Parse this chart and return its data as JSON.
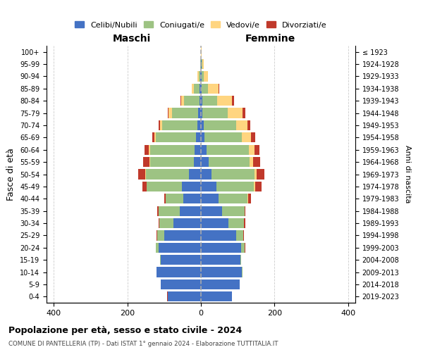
{
  "age_groups": [
    "0-4",
    "5-9",
    "10-14",
    "15-19",
    "20-24",
    "25-29",
    "30-34",
    "35-39",
    "40-44",
    "45-49",
    "50-54",
    "55-59",
    "60-64",
    "65-69",
    "70-74",
    "75-79",
    "80-84",
    "85-89",
    "90-94",
    "95-99",
    "100+"
  ],
  "birth_years": [
    "2019-2023",
    "2014-2018",
    "2009-2013",
    "2004-2008",
    "1999-2003",
    "1994-1998",
    "1989-1993",
    "1984-1988",
    "1979-1983",
    "1974-1978",
    "1969-1973",
    "1964-1968",
    "1959-1963",
    "1954-1958",
    "1949-1953",
    "1944-1948",
    "1939-1943",
    "1934-1938",
    "1929-1933",
    "1924-1928",
    "≤ 1923"
  ],
  "male": {
    "celibi": [
      90,
      110,
      120,
      110,
      115,
      100,
      75,
      58,
      48,
      52,
      32,
      20,
      17,
      13,
      10,
      7,
      4,
      3,
      2,
      0,
      0
    ],
    "coniugati": [
      0,
      0,
      1,
      2,
      8,
      18,
      38,
      58,
      48,
      95,
      118,
      118,
      122,
      110,
      95,
      72,
      42,
      17,
      4,
      1,
      0
    ],
    "vedovi": [
      0,
      0,
      0,
      0,
      0,
      0,
      0,
      0,
      0,
      0,
      2,
      2,
      2,
      4,
      7,
      9,
      7,
      5,
      3,
      0,
      0
    ],
    "divorziati": [
      2,
      0,
      0,
      0,
      0,
      2,
      2,
      2,
      4,
      12,
      18,
      18,
      12,
      5,
      4,
      3,
      2,
      0,
      0,
      0,
      0
    ]
  },
  "female": {
    "nubili": [
      85,
      105,
      112,
      108,
      110,
      95,
      75,
      58,
      48,
      42,
      28,
      22,
      15,
      10,
      7,
      4,
      3,
      2,
      1,
      1,
      0
    ],
    "coniugate": [
      0,
      0,
      1,
      2,
      8,
      20,
      42,
      60,
      78,
      102,
      118,
      110,
      115,
      102,
      88,
      68,
      42,
      18,
      6,
      2,
      0
    ],
    "vedove": [
      0,
      0,
      0,
      0,
      0,
      0,
      0,
      0,
      2,
      3,
      5,
      10,
      15,
      25,
      32,
      42,
      40,
      28,
      12,
      5,
      1
    ],
    "divorziate": [
      0,
      0,
      0,
      0,
      2,
      2,
      3,
      3,
      8,
      18,
      22,
      20,
      15,
      10,
      8,
      7,
      5,
      2,
      0,
      0,
      0
    ]
  },
  "colors": {
    "celibi": "#4472C4",
    "coniugati": "#9DC383",
    "vedovi": "#FFD580",
    "divorziati": "#C0392B"
  },
  "xlim": 420,
  "title": "Popolazione per età, sesso e stato civile - 2024",
  "subtitle": "COMUNE DI PANTELLERIA (TP) - Dati ISTAT 1° gennaio 2024 - Elaborazione TUTTITALIA.IT",
  "ylabel": "Fasce di età",
  "ylabel_right": "Anni di nascita",
  "xlabel_left": "Maschi",
  "xlabel_right": "Femmine",
  "background_color": "#ffffff",
  "grid_color": "#cccccc"
}
